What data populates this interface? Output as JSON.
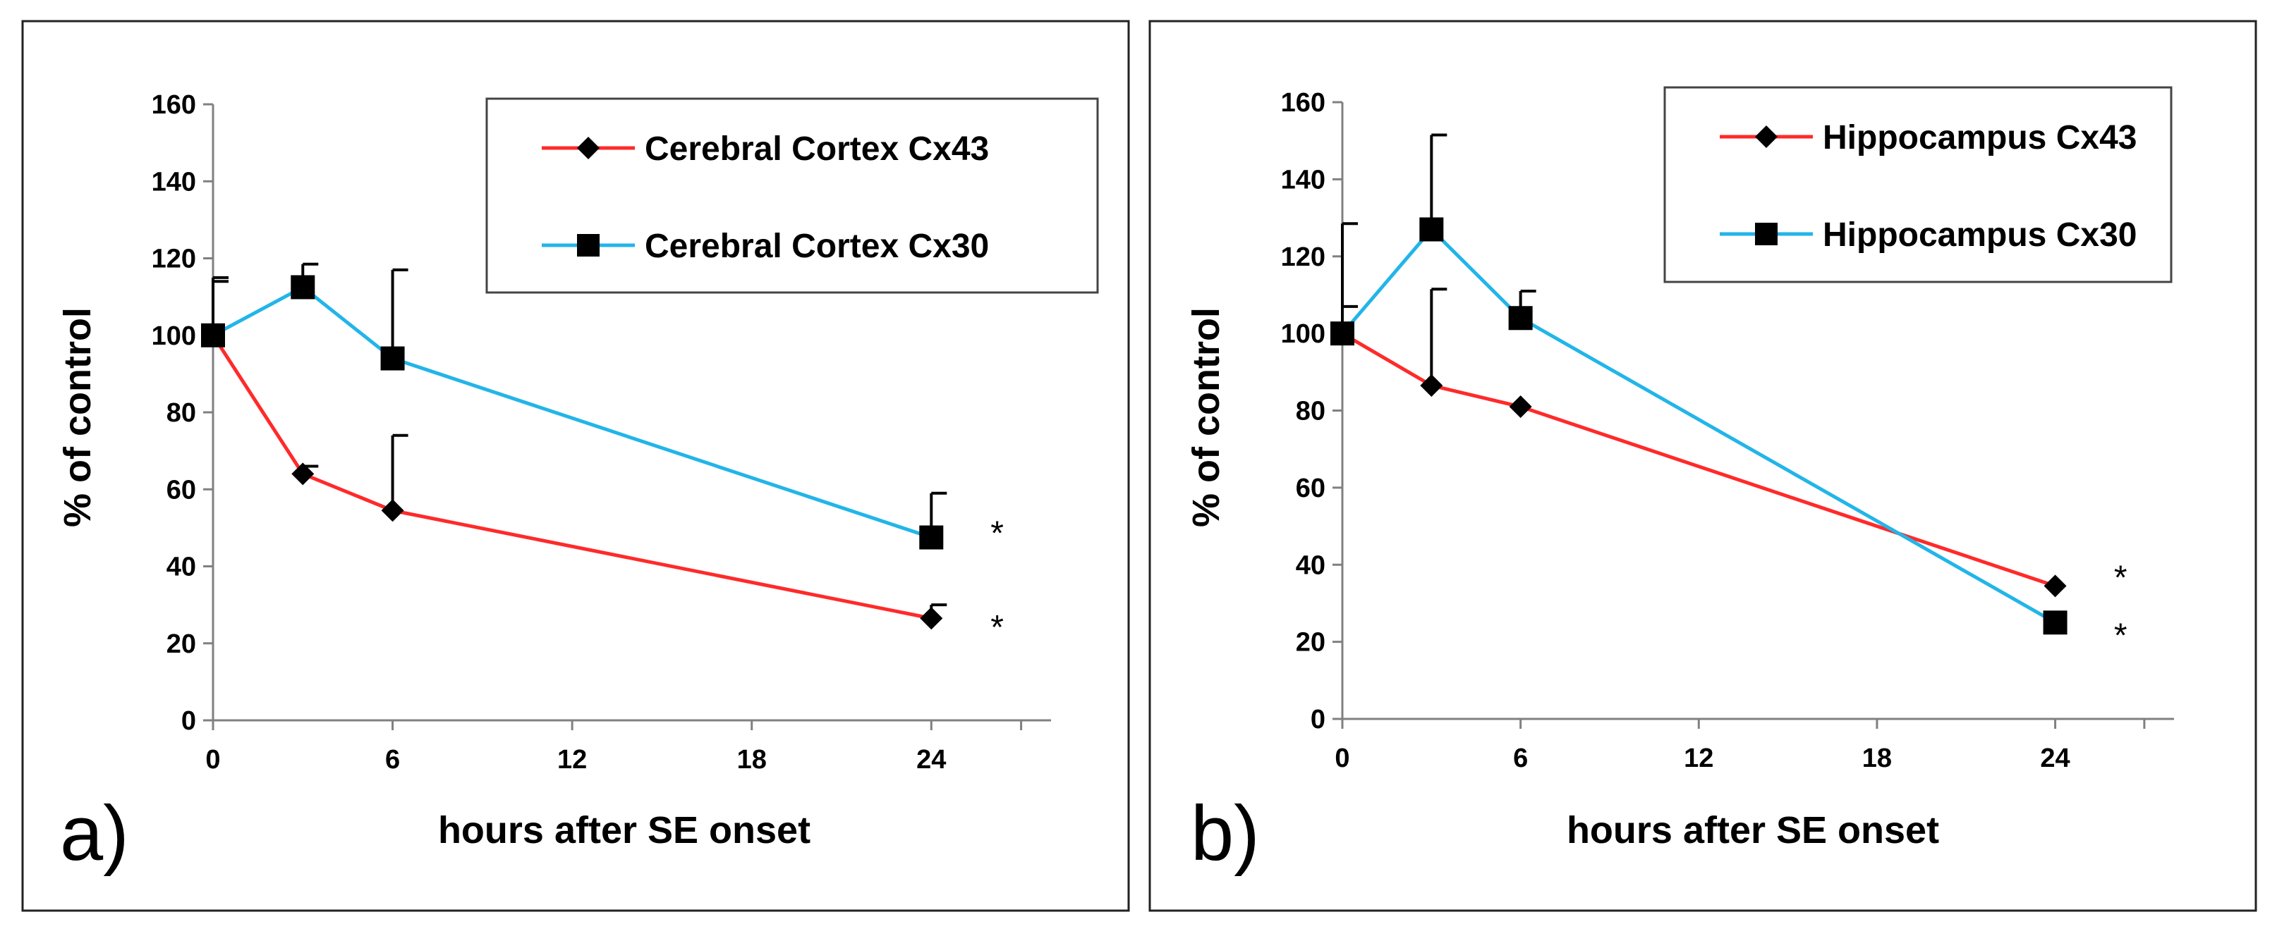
{
  "chart_data": [
    {
      "type": "line",
      "panel_label": "a)",
      "xlabel": "hours after SE onset",
      "ylabel": "% of control",
      "xlim": [
        0,
        28
      ],
      "ylim": [
        0,
        160
      ],
      "xticks": [
        0,
        6,
        12,
        18,
        24
      ],
      "yticks": [
        0,
        20,
        40,
        60,
        80,
        100,
        120,
        140,
        160
      ],
      "x_tick_labels": [
        "0",
        "6",
        "12",
        "18",
        "24"
      ],
      "y_tick_labels": [
        "0",
        "20",
        "40",
        "60",
        "80",
        "100",
        "120",
        "140",
        "160"
      ],
      "legend_position": "top-right",
      "series": [
        {
          "name": "Cerebral Cortex Cx43",
          "color": "#ff2a2a",
          "marker": "diamond",
          "x": [
            0,
            3,
            6,
            24
          ],
          "y": [
            100,
            64,
            54.5,
            26.5
          ],
          "err": [
            15,
            2,
            19.5,
            3.5
          ]
        },
        {
          "name": "Cerebral Cortex Cx30",
          "color": "#22b5e8",
          "marker": "square",
          "x": [
            0,
            3,
            6,
            24
          ],
          "y": [
            100,
            112.5,
            94,
            47.5
          ],
          "err": [
            14,
            6,
            23,
            11.5
          ]
        }
      ],
      "annotations": [
        {
          "text": "*",
          "x": 26.2,
          "y": 49
        },
        {
          "text": "*",
          "x": 26.2,
          "y": 24.5
        }
      ]
    },
    {
      "type": "line",
      "panel_label": "b)",
      "xlabel": "hours after SE onset",
      "ylabel": "% of control",
      "xlim": [
        0,
        28
      ],
      "ylim": [
        0,
        160
      ],
      "xticks": [
        0,
        6,
        12,
        18,
        24
      ],
      "yticks": [
        0,
        20,
        40,
        60,
        80,
        100,
        120,
        140,
        160
      ],
      "x_tick_labels": [
        "0",
        "6",
        "12",
        "18",
        "24"
      ],
      "y_tick_labels": [
        "0",
        "20",
        "40",
        "60",
        "80",
        "100",
        "120",
        "140",
        "160"
      ],
      "legend_position": "top-right",
      "series": [
        {
          "name": "Hippocampus Cx43",
          "color": "#ff2a2a",
          "marker": "diamond",
          "x": [
            0,
            3,
            6,
            24
          ],
          "y": [
            100,
            86.5,
            81,
            34.5
          ],
          "err": [
            7,
            25,
            0,
            0
          ]
        },
        {
          "name": "Hippocampus Cx30",
          "color": "#22b5e8",
          "marker": "square",
          "x": [
            0,
            3,
            6,
            24
          ],
          "y": [
            100,
            127,
            104,
            25
          ],
          "err": [
            28.5,
            24.5,
            7,
            0
          ]
        }
      ],
      "annotations": [
        {
          "text": "*",
          "x": 26.2,
          "y": 37
        },
        {
          "text": "*",
          "x": 26.2,
          "y": 22
        }
      ]
    }
  ]
}
